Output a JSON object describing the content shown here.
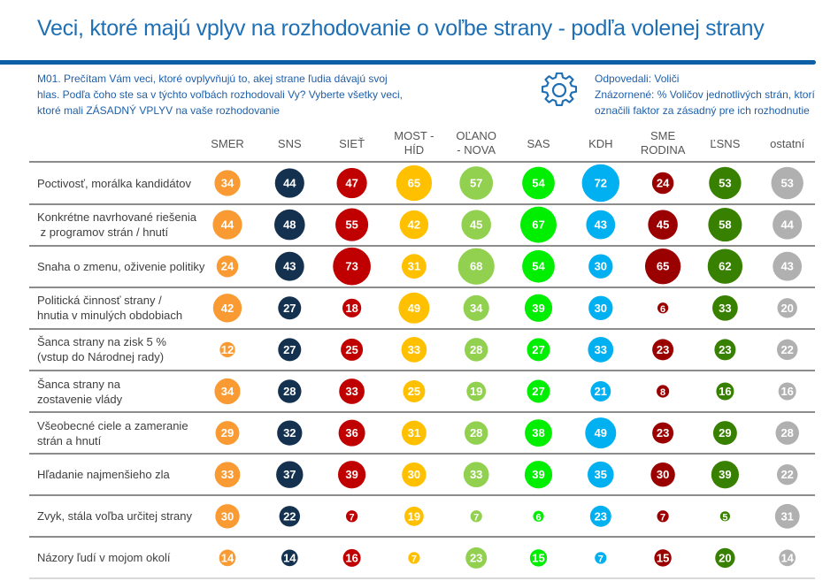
{
  "header": {
    "title": "Veci, ktoré majú vplyv na rozhodovanie o voľbe strany - podľa volenej strany",
    "question_lines": [
      "M01. Prečítam Vám veci, ktoré ovplyvňujú to, akej strane ľudia dávajú svoj",
      "hlas. Podľa čoho ste sa v týchto voľbách rozhodovali Vy? Vyberte všetky veci,",
      "ktoré mali ZÁSADNÝ VPLYV na vaše rozhodovanie"
    ],
    "note_icon": "gear-icon",
    "note_lines": [
      "Odpovedali: Voliči",
      "Znázornené: % Voličov jednotlivých strán, ktorí",
      "označili faktor za zásadný pre ich rozhodnutie"
    ]
  },
  "chart_data": {
    "type": "bubble-table",
    "title": "Veci, ktoré majú vplyv na rozhodovanie o voľbe strany - podľa volenej strany",
    "unit": "%",
    "columns": [
      {
        "label_lines": [
          "SMER"
        ],
        "color": "#f99a33"
      },
      {
        "label_lines": [
          "SNS"
        ],
        "color": "#14324f"
      },
      {
        "label_lines": [
          "SIEŤ"
        ],
        "color": "#c00000"
      },
      {
        "label_lines": [
          "MOST -",
          "HÍD"
        ],
        "color": "#ffc000"
      },
      {
        "label_lines": [
          "OĽANO",
          "- NOVA"
        ],
        "color": "#92d050"
      },
      {
        "label_lines": [
          "SAS"
        ],
        "color": "#00ee00"
      },
      {
        "label_lines": [
          "KDH"
        ],
        "color": "#00b0f0"
      },
      {
        "label_lines": [
          "SME",
          "RODINA"
        ],
        "color": "#9b0000"
      },
      {
        "label_lines": [
          "ĽSNS"
        ],
        "color": "#388000"
      },
      {
        "label_lines": [
          "ostatní"
        ],
        "color": "#b0b0b0"
      }
    ],
    "rows": [
      {
        "label_lines": [
          "Poctivosť, morálka kandidátov"
        ],
        "values": [
          34,
          44,
          47,
          65,
          57,
          54,
          72,
          24,
          53,
          53
        ]
      },
      {
        "label_lines": [
          "Konkrétne navrhované riešenia",
          " z programov strán / hnutí"
        ],
        "values": [
          44,
          48,
          55,
          42,
          45,
          67,
          43,
          45,
          58,
          44
        ]
      },
      {
        "label_lines": [
          "Snaha o zmenu, oživenie politiky"
        ],
        "values": [
          24,
          43,
          73,
          31,
          68,
          54,
          30,
          65,
          62,
          43
        ]
      },
      {
        "label_lines": [
          "Politická činnosť strany /",
          "hnutia v minulých obdobiach"
        ],
        "values": [
          42,
          27,
          18,
          49,
          34,
          39,
          30,
          6,
          33,
          20
        ]
      },
      {
        "label_lines": [
          "Šanca strany na zisk 5 %",
          "(vstup do Národnej rady)"
        ],
        "values": [
          12,
          27,
          25,
          33,
          28,
          27,
          33,
          23,
          23,
          22
        ]
      },
      {
        "label_lines": [
          "Šanca strany na",
          "zostavenie vlády"
        ],
        "values": [
          34,
          28,
          33,
          25,
          19,
          27,
          21,
          8,
          16,
          16
        ]
      },
      {
        "label_lines": [
          "Všeobecné ciele a zameranie",
          "strán a hnutí"
        ],
        "values": [
          29,
          32,
          36,
          31,
          28,
          38,
          49,
          23,
          29,
          28
        ]
      },
      {
        "label_lines": [
          "Hľadanie najmenšieho zla"
        ],
        "values": [
          33,
          37,
          39,
          30,
          33,
          39,
          35,
          30,
          39,
          22
        ]
      },
      {
        "label_lines": [
          "Zvyk, stála voľba určitej strany"
        ],
        "values": [
          30,
          22,
          7,
          19,
          7,
          6,
          23,
          7,
          5,
          31
        ]
      },
      {
        "label_lines": [
          "Názory ľudí v mojom okolí"
        ],
        "values": [
          14,
          14,
          16,
          7,
          23,
          15,
          7,
          15,
          20,
          14
        ]
      }
    ],
    "grid": true,
    "legend": "none"
  }
}
